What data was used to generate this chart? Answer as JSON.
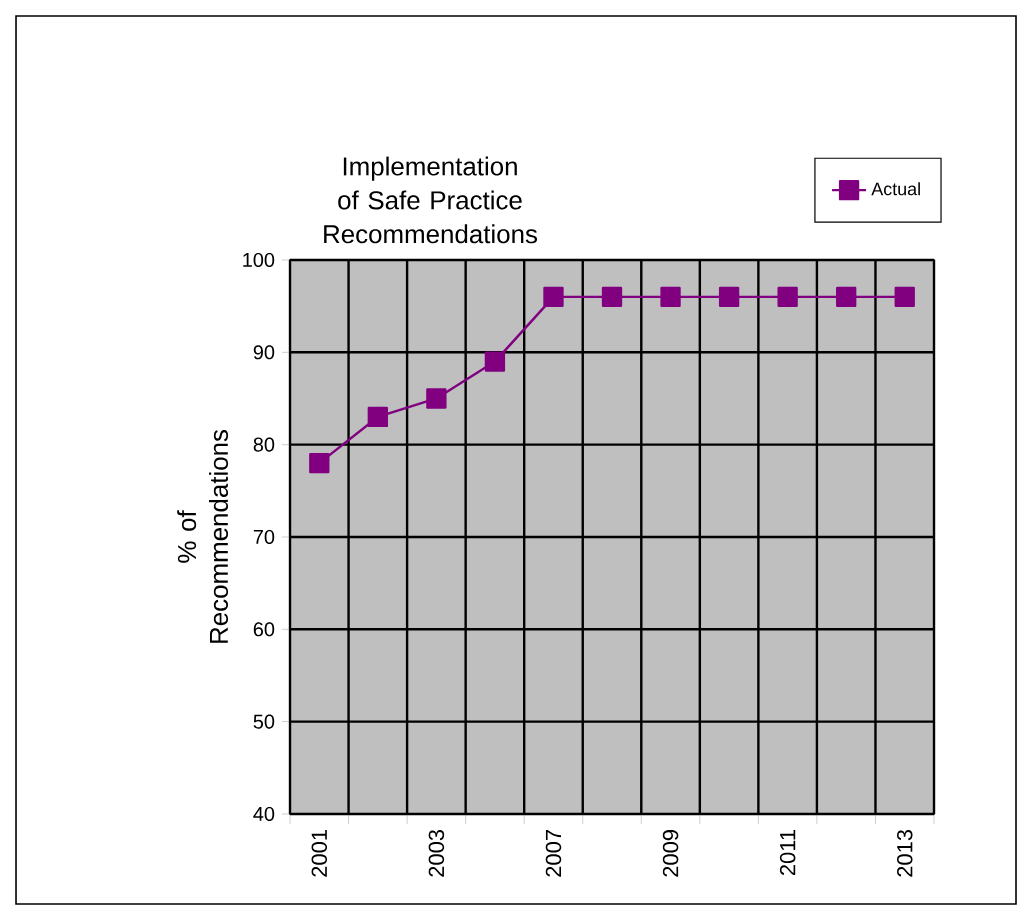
{
  "chart_data": {
    "type": "line",
    "title": "Implementation of Safe Practice Recommendations",
    "ylabel": "% of Recommendations",
    "categories": [
      "2001",
      null,
      "2003",
      null,
      "2007",
      null,
      "2009",
      null,
      "2011",
      null,
      "2013"
    ],
    "series": [
      {
        "name": "Actual",
        "color": "#800080",
        "values": [
          78,
          83,
          85,
          89,
          96,
          96,
          96,
          96,
          96,
          96,
          96
        ]
      }
    ],
    "ylim": [
      40,
      100
    ],
    "yticks": [
      40,
      50,
      60,
      70,
      80,
      90,
      100
    ],
    "grid": true,
    "legend": "top right",
    "marker": "square",
    "line_style": "solid"
  }
}
